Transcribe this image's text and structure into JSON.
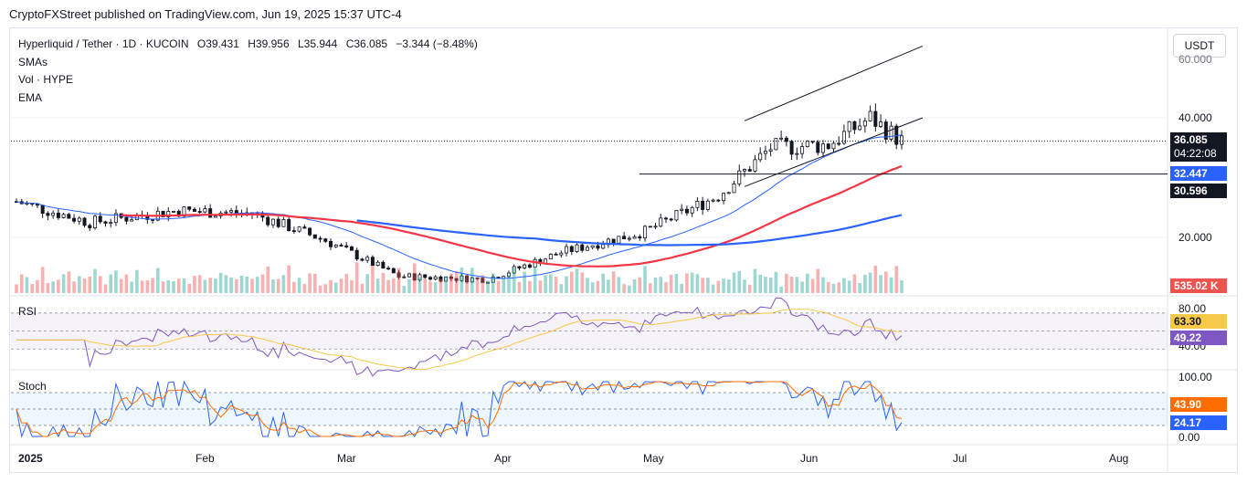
{
  "header": {
    "publisher": "CryptoFXStreet published on TradingView.com, Jun 19, 2025 15:37 UTC-4"
  },
  "legend": {
    "symbol": "Hyperliquid / Tether · 1D · KUCOIN",
    "open": "O39.431",
    "high": "H39.956",
    "low": "L35.944",
    "close": "C36.085",
    "change": "−3.344 (−8.48%)",
    "lines": [
      "SMAs",
      "Vol · HYPE",
      "EMA"
    ]
  },
  "currency_button": "USDT",
  "colors": {
    "up": "#26a69a",
    "down": "#ef5350",
    "sma_red": "#f23645",
    "sma_blue": "#2962ff",
    "rsi_line": "#7e57c2",
    "rsi_ma": "#f7c948",
    "stoch_k": "#2962ff",
    "stoch_d": "#ff6d00",
    "last_price_bg": "#131722",
    "grid": "#f0f3fa"
  },
  "price_axis": {
    "ticks": [
      "40.000",
      "20.000"
    ],
    "top_partial": "60.000"
  },
  "price_tags": {
    "last_price": "36.085",
    "countdown": "04:22:08",
    "sma_1": "32.447",
    "level": "30.596",
    "volume": "535.02 K"
  },
  "rsi": {
    "title": "RSI",
    "ticks": [
      "80.00",
      "40.00"
    ],
    "value": "49.22",
    "ma_value": "63.30"
  },
  "stoch": {
    "title": "Stoch",
    "ticks": [
      "100.00",
      "0.00"
    ],
    "k_value": "24.17",
    "d_value": "43.90"
  },
  "time_axis": [
    "2025",
    "Feb",
    "Mar",
    "Apr",
    "May",
    "Jun",
    "Jul",
    "Aug"
  ],
  "chart_data": {
    "type": "candlestick",
    "symbol": "HYPE/USDT",
    "interval": "1D",
    "ohlc_last": {
      "open": 39.431,
      "high": 39.956,
      "low": 35.944,
      "close": 36.085,
      "change": -3.344,
      "change_pct": -8.48
    },
    "close_by_month": [
      {
        "date": "2025-01-01",
        "close": 26.0
      },
      {
        "date": "2025-01-15",
        "close": 22.5
      },
      {
        "date": "2025-02-01",
        "close": 24.5
      },
      {
        "date": "2025-02-15",
        "close": 24.0
      },
      {
        "date": "2025-03-01",
        "close": 19.5
      },
      {
        "date": "2025-03-15",
        "close": 13.5
      },
      {
        "date": "2025-04-01",
        "close": 13.0
      },
      {
        "date": "2025-04-15",
        "close": 17.5
      },
      {
        "date": "2025-05-01",
        "close": 21.0
      },
      {
        "date": "2025-05-15",
        "close": 27.0
      },
      {
        "date": "2025-05-25",
        "close": 35.0
      },
      {
        "date": "2025-06-05",
        "close": 35.5
      },
      {
        "date": "2025-06-13",
        "close": 40.0
      },
      {
        "date": "2025-06-19",
        "close": 36.085
      }
    ],
    "series": [
      {
        "name": "SMA",
        "color": "#f23645",
        "last": 32.447
      },
      {
        "name": "EMA",
        "color": "#2962ff"
      }
    ],
    "horizontal_level": 30.596,
    "volume_last": "535.02 K",
    "rsi": {
      "last": 49.22,
      "ma_last": 63.3,
      "bands": [
        80,
        40
      ]
    },
    "stoch": {
      "k_last": 24.17,
      "d_last": 43.9,
      "range": [
        0,
        100
      ]
    }
  }
}
